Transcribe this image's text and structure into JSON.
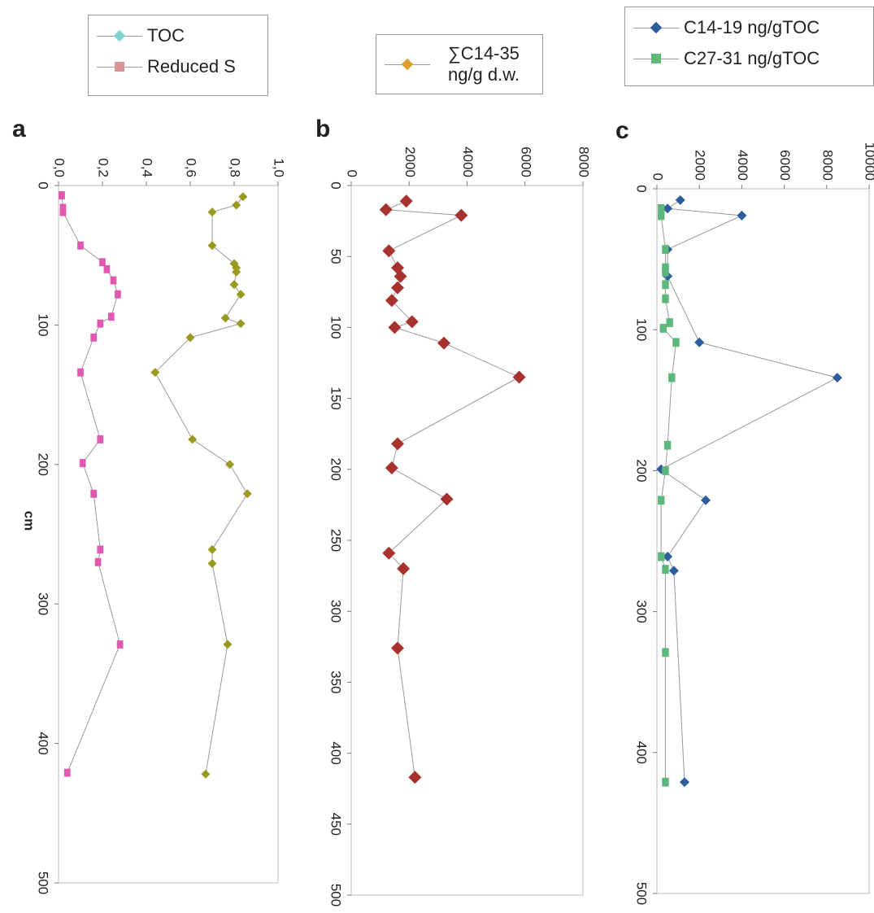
{
  "chart_data": [
    {
      "type": "line",
      "title": "a",
      "x_label": "cm",
      "xlim": [
        0,
        500
      ],
      "xticks": [
        0,
        100,
        200,
        300,
        400,
        500
      ],
      "ylim": [
        0,
        1
      ],
      "yticks": [
        {
          "value": 0,
          "label": "0,0"
        },
        {
          "value": 0.2,
          "label": "0,2"
        },
        {
          "value": 0.4,
          "label": "0,4"
        },
        {
          "value": 0.6,
          "label": "0,6"
        },
        {
          "value": 0.8,
          "label": "0,8"
        },
        {
          "value": 1,
          "label": "1,0"
        }
      ],
      "series": [
        {
          "name": "TOC",
          "color": "#9a9a1e",
          "legend_color": "#7fd3d3",
          "marker": "diamond",
          "x": [
            8,
            14,
            19,
            43,
            56,
            59,
            62,
            71,
            78,
            95,
            99,
            109,
            134,
            182,
            200,
            221,
            261,
            271,
            329,
            422
          ],
          "values": [
            0.84,
            0.81,
            0.7,
            0.7,
            0.8,
            0.81,
            0.81,
            0.8,
            0.83,
            0.76,
            0.83,
            0.6,
            0.44,
            0.61,
            0.78,
            0.86,
            0.7,
            0.7,
            0.77,
            0.67
          ]
        },
        {
          "name": "Reduced S",
          "color": "#e058b0",
          "legend_color": "#d99595",
          "marker": "square",
          "x": [
            7,
            16,
            19,
            43,
            55,
            60,
            68,
            78,
            94,
            99,
            109,
            134,
            182,
            199,
            221,
            261,
            270,
            329,
            421
          ],
          "values": [
            0.015,
            0.02,
            0.02,
            0.1,
            0.2,
            0.22,
            0.25,
            0.27,
            0.24,
            0.19,
            0.16,
            0.1,
            0.19,
            0.11,
            0.16,
            0.19,
            0.18,
            0.28,
            0.04
          ]
        }
      ]
    },
    {
      "type": "line",
      "title": "b",
      "xlim": [
        0,
        500
      ],
      "xticks": [
        0,
        50,
        100,
        150,
        200,
        250,
        300,
        350,
        400,
        450,
        500
      ],
      "ylim": [
        0,
        8000
      ],
      "yticks": [
        0,
        2000,
        4000,
        6000,
        8000
      ],
      "series": [
        {
          "name": "∑C14-35 ng/g d.w.",
          "color": "#a8322d",
          "legend_color": "#d9a030",
          "marker": "diamond",
          "x": [
            11,
            17,
            21,
            46,
            58,
            64,
            72,
            81,
            96,
            100,
            111,
            135,
            182,
            199,
            221,
            259,
            270,
            326,
            417
          ],
          "values": [
            1900,
            1200,
            3800,
            1300,
            1600,
            1700,
            1600,
            1400,
            2100,
            1500,
            3200,
            5800,
            1600,
            1400,
            3300,
            1300,
            1800,
            1600,
            2200
          ]
        }
      ]
    },
    {
      "type": "line",
      "title": "c",
      "xlim": [
        0,
        500
      ],
      "xticks": [
        0,
        100,
        200,
        300,
        400,
        500
      ],
      "ylim": [
        0,
        10000
      ],
      "yticks": [
        0,
        2000,
        4000,
        6000,
        8000,
        10000
      ],
      "series": [
        {
          "name": "C14-19 ng/gTOC",
          "color": "#2e5d9e",
          "legend_color": "#2e5d9e",
          "marker": "diamond",
          "x": [
            8,
            14,
            19,
            43,
            62,
            109,
            134,
            199,
            221,
            261,
            271,
            421
          ],
          "values": [
            1100,
            500,
            4000,
            500,
            500,
            2000,
            8500,
            200,
            2300,
            500,
            800,
            1300
          ]
        },
        {
          "name": "C27-31 ng/gTOC",
          "color": "#5cb87a",
          "legend_color": "#5cb87a",
          "marker": "square",
          "x": [
            14,
            19,
            43,
            56,
            59,
            68,
            78,
            95,
            99,
            109,
            134,
            182,
            200,
            221,
            261,
            270,
            329,
            421
          ],
          "values": [
            200,
            200,
            400,
            400,
            400,
            400,
            400,
            600,
            300,
            900,
            700,
            500,
            400,
            200,
            200,
            400,
            400,
            400
          ]
        }
      ]
    }
  ]
}
